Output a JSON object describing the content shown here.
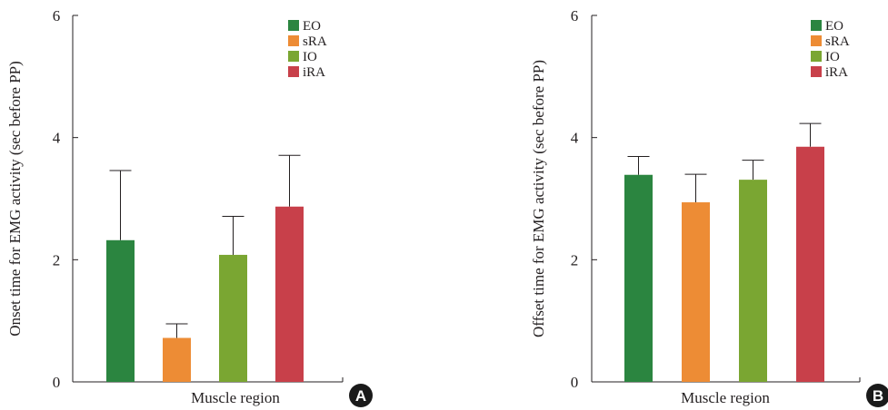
{
  "colors": {
    "EO": "#2b8540",
    "sRA": "#ed8c35",
    "IO": "#7aa632",
    "iRA": "#c8404a",
    "axis": "#231f20",
    "badge": "#1a1a1a"
  },
  "chart_data": [
    {
      "type": "bar",
      "panel_label": "A",
      "categories": [
        "EO",
        "sRA",
        "IO",
        "iRA"
      ],
      "values": [
        2.32,
        0.72,
        2.08,
        2.87
      ],
      "error_upper": [
        3.46,
        0.95,
        2.71,
        3.71
      ],
      "xlabel": "Muscle region",
      "ylabel": "Onset time for EMG activity (sec before PP)",
      "ylim": [
        0,
        6
      ],
      "yticks": [
        "0",
        "2",
        "4",
        "6"
      ],
      "legend": [
        "EO",
        "sRA",
        "IO",
        "iRA"
      ],
      "legend_position": "top-right",
      "grid": false
    },
    {
      "type": "bar",
      "panel_label": "B",
      "categories": [
        "EO",
        "sRA",
        "IO",
        "iRA"
      ],
      "values": [
        3.39,
        2.94,
        3.31,
        3.85
      ],
      "error_upper": [
        3.69,
        3.4,
        3.63,
        4.23
      ],
      "xlabel": "Muscle region",
      "ylabel": "Offset time for EMG activity (sec before PP)",
      "ylim": [
        0,
        6
      ],
      "yticks": [
        "0",
        "2",
        "4",
        "6"
      ],
      "legend": [
        "EO",
        "sRA",
        "IO",
        "iRA"
      ],
      "legend_position": "top-right",
      "grid": false
    }
  ]
}
